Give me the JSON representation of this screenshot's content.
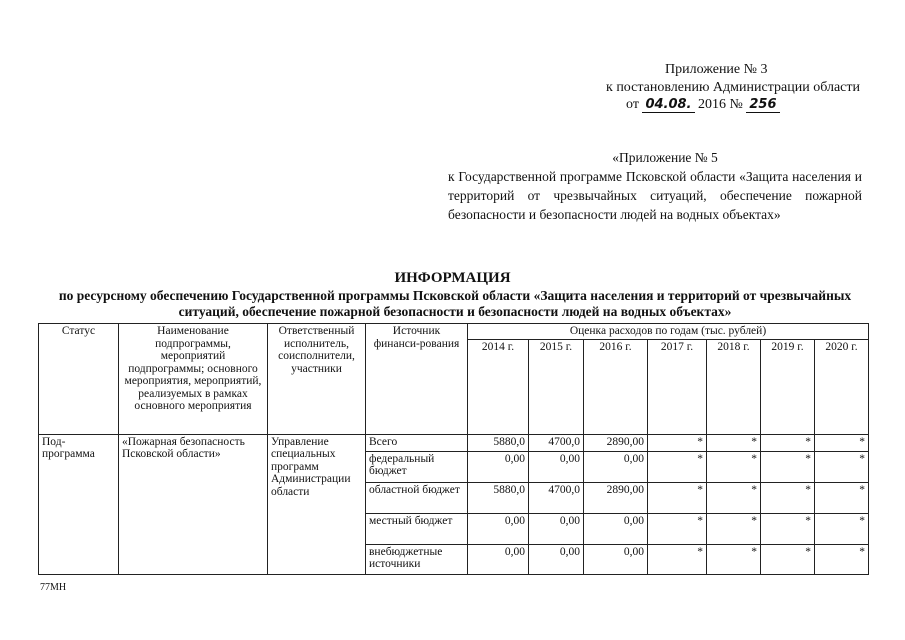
{
  "header": {
    "annex": "Приложение № 3",
    "to_resolution": "к постановлению Администрации области",
    "date_prefix": "от",
    "date_hand": "04.08.",
    "year": "2016 №",
    "number_hand": "256"
  },
  "annex5": {
    "first": "«Приложение № 5",
    "body": "к Государственной программе Псковской области «Защита населения и территорий от чрезвычайных ситуаций, обеспечение пожарной безопасности и безопасности людей на водных объектах»"
  },
  "title": "ИНФОРМАЦИЯ",
  "subtitle": "по ресурсному обеспечению Государственной программы Псковской области «Защита населения и территорий от чрезвычайных ситуаций, обеспечение пожарной безопасности и безопасности людей на водных объектах»",
  "table": {
    "headers": {
      "status": "Статус",
      "name": "Наименование подпрограммы, мероприятий подпрограммы; основного мероприятия, мероприятий, реализуемых в рамках основного мероприятия",
      "responsible": "Ответственный исполнитель, соисполнители, участники",
      "source": "Источник финанси-рования",
      "estimate": "Оценка расходов по годам (тыс. рублей)",
      "years": [
        "2014 г.",
        "2015 г.",
        "2016 г.",
        "2017 г.",
        "2018 г.",
        "2019 г.",
        "2020 г."
      ]
    },
    "status": "Под-программа",
    "name": "«Пожарная безопасность Псковской области»",
    "responsible": "Управление специальных программ Администрации области",
    "rows": [
      {
        "source": "Всего",
        "values": [
          "5880,0",
          "4700,0",
          "2890,00",
          "*",
          "*",
          "*",
          "*"
        ]
      },
      {
        "source": "федеральный бюджет",
        "values": [
          "0,00",
          "0,00",
          "0,00",
          "*",
          "*",
          "*",
          "*"
        ]
      },
      {
        "source": "областной бюджет",
        "values": [
          "5880,0",
          "4700,0",
          "2890,00",
          "*",
          "*",
          "*",
          "*"
        ]
      },
      {
        "source": "местный бюджет",
        "values": [
          "0,00",
          "0,00",
          "0,00",
          "*",
          "*",
          "*",
          "*"
        ]
      },
      {
        "source": "внебюджетные источники",
        "values": [
          "0,00",
          "0,00",
          "0,00",
          "*",
          "*",
          "*",
          "*"
        ]
      }
    ]
  },
  "footer_code": "77МН"
}
